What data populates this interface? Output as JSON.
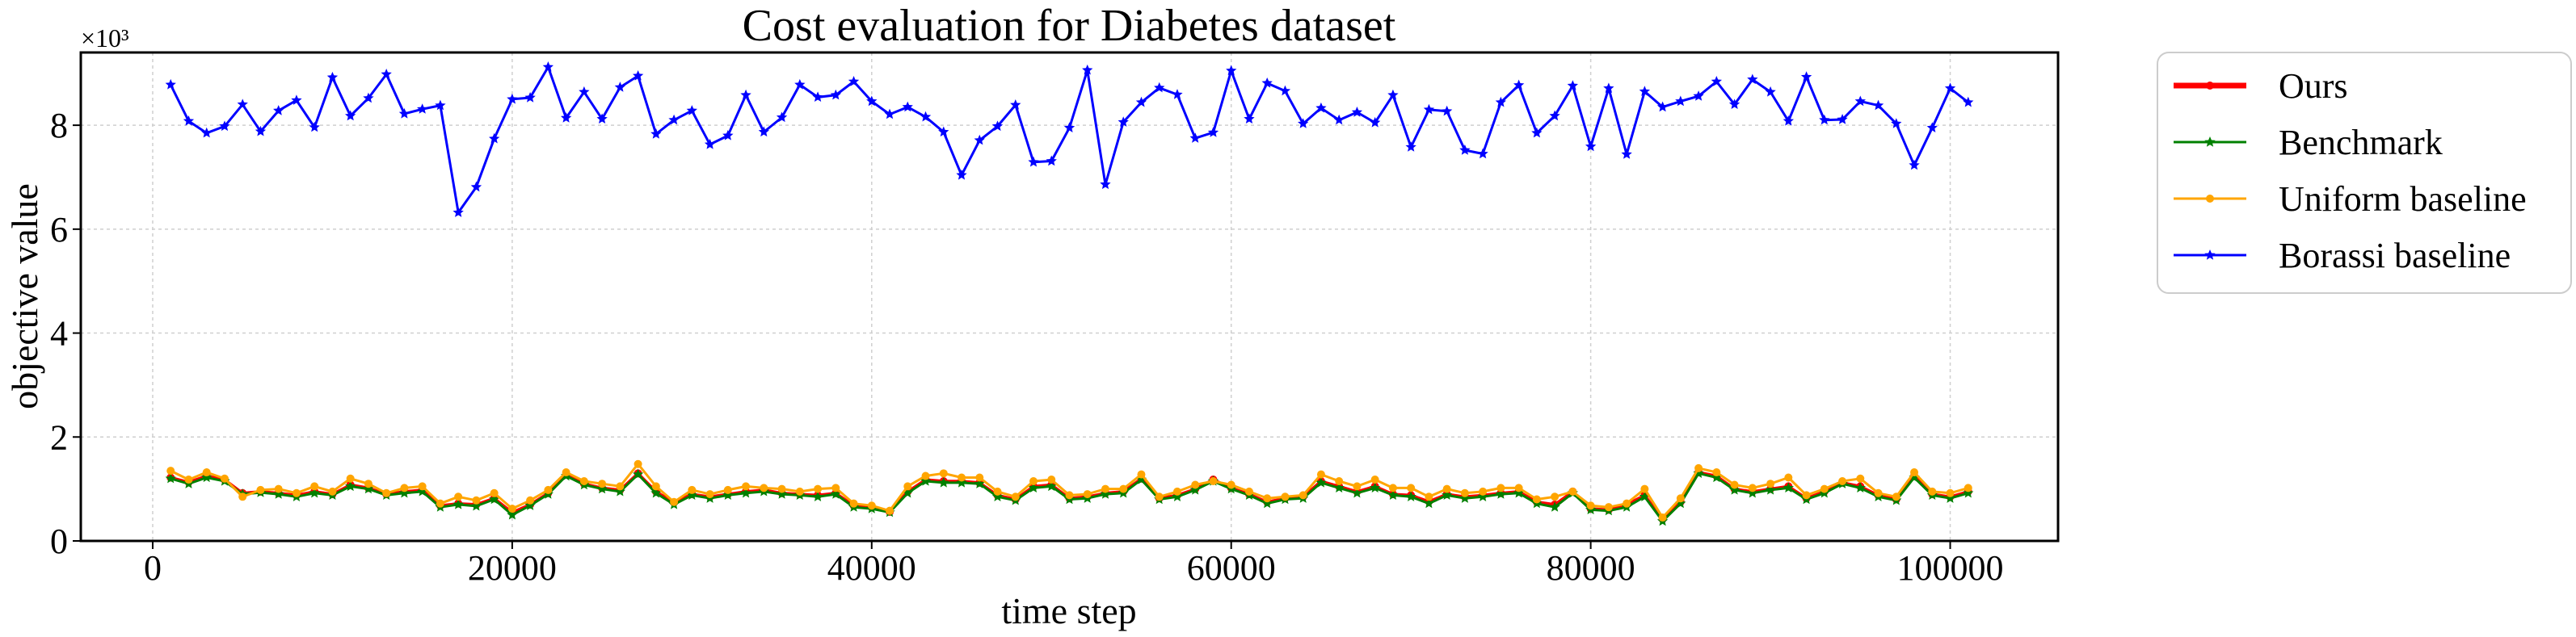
{
  "chart_data": {
    "type": "line",
    "title": "Cost evaluation for Diabetes dataset",
    "xlabel": "time step",
    "ylabel": "objective value",
    "y_multiplier_label": "×10³",
    "xlim": [
      -4000,
      106000
    ],
    "ylim": [
      0,
      9.4
    ],
    "xticks": [
      0,
      20000,
      40000,
      60000,
      80000,
      100000
    ],
    "yticks": [
      0,
      2,
      4,
      6,
      8
    ],
    "grid": true,
    "legend_position": "outside-right-top",
    "x": [
      1000,
      2000,
      3000,
      4000,
      5000,
      6000,
      7000,
      8000,
      9000,
      10000,
      11000,
      12000,
      13000,
      14000,
      15000,
      16000,
      17000,
      18000,
      19000,
      20000,
      21000,
      22000,
      23000,
      24000,
      25000,
      26000,
      27000,
      28000,
      29000,
      30000,
      31000,
      32000,
      33000,
      34000,
      35000,
      36000,
      37000,
      38000,
      39000,
      40000,
      41000,
      42000,
      43000,
      44000,
      45000,
      46000,
      47000,
      48000,
      49000,
      50000,
      51000,
      52000,
      53000,
      54000,
      55000,
      56000,
      57000,
      58000,
      59000,
      60000,
      61000,
      62000,
      63000,
      64000,
      65000,
      66000,
      67000,
      68000,
      69000,
      70000,
      71000,
      72000,
      73000,
      74000,
      75000,
      76000,
      77000,
      78000,
      79000,
      80000,
      81000,
      82000,
      83000,
      84000,
      85000,
      86000,
      87000,
      88000,
      89000,
      90000,
      91000,
      92000,
      93000,
      94000,
      95000,
      96000,
      97000,
      98000,
      99000,
      100000,
      101000
    ],
    "series": [
      {
        "name": "Ours",
        "color": "#ff0000",
        "marker": "circle",
        "values": [
          1.22,
          1.13,
          1.25,
          1.18,
          0.92,
          0.95,
          0.92,
          0.88,
          0.95,
          0.9,
          1.08,
          1.02,
          0.9,
          0.95,
          0.98,
          0.68,
          0.72,
          0.7,
          0.82,
          0.55,
          0.7,
          0.92,
          1.28,
          1.1,
          1.02,
          0.98,
          1.3,
          0.95,
          0.74,
          0.9,
          0.85,
          0.9,
          0.95,
          0.98,
          0.92,
          0.9,
          0.88,
          0.92,
          0.68,
          0.65,
          0.56,
          0.95,
          1.18,
          1.15,
          1.15,
          1.12,
          0.88,
          0.8,
          1.05,
          1.08,
          0.82,
          0.85,
          0.92,
          0.95,
          1.2,
          0.82,
          0.88,
          1.0,
          1.18,
          1.02,
          0.9,
          0.75,
          0.82,
          0.85,
          1.15,
          1.05,
          0.95,
          1.05,
          0.9,
          0.88,
          0.76,
          0.9,
          0.85,
          0.88,
          0.92,
          0.95,
          0.75,
          0.7,
          0.95,
          0.62,
          0.6,
          0.7,
          0.88,
          0.42,
          0.75,
          1.32,
          1.25,
          1.0,
          0.95,
          1.0,
          1.05,
          0.82,
          0.95,
          1.12,
          1.05,
          0.88,
          0.8,
          1.25,
          0.9,
          0.85,
          0.95
        ]
      },
      {
        "name": "Benchmark",
        "color": "#008000",
        "marker": "star",
        "values": [
          1.2,
          1.1,
          1.22,
          1.15,
          0.9,
          0.93,
          0.9,
          0.85,
          0.92,
          0.88,
          1.05,
          1.0,
          0.88,
          0.92,
          0.95,
          0.65,
          0.7,
          0.67,
          0.8,
          0.5,
          0.68,
          0.9,
          1.25,
          1.08,
          1.0,
          0.95,
          1.28,
          0.92,
          0.7,
          0.88,
          0.82,
          0.88,
          0.92,
          0.95,
          0.9,
          0.88,
          0.85,
          0.9,
          0.65,
          0.62,
          0.55,
          0.92,
          1.15,
          1.12,
          1.12,
          1.1,
          0.85,
          0.78,
          1.02,
          1.05,
          0.8,
          0.82,
          0.9,
          0.92,
          1.18,
          0.8,
          0.85,
          0.98,
          1.15,
          1.0,
          0.88,
          0.72,
          0.8,
          0.82,
          1.12,
          1.02,
          0.92,
          1.02,
          0.88,
          0.85,
          0.72,
          0.88,
          0.82,
          0.85,
          0.9,
          0.92,
          0.72,
          0.65,
          0.92,
          0.6,
          0.58,
          0.65,
          0.85,
          0.38,
          0.72,
          1.3,
          1.22,
          0.98,
          0.92,
          0.98,
          1.02,
          0.8,
          0.92,
          1.1,
          1.02,
          0.85,
          0.78,
          1.22,
          0.88,
          0.82,
          0.92
        ]
      },
      {
        "name": "Uniform baseline",
        "color": "#ffa500",
        "marker": "circle",
        "values": [
          1.35,
          1.18,
          1.32,
          1.2,
          0.85,
          0.98,
          1.0,
          0.92,
          1.05,
          0.95,
          1.2,
          1.1,
          0.92,
          1.02,
          1.05,
          0.72,
          0.85,
          0.78,
          0.92,
          0.62,
          0.78,
          0.98,
          1.32,
          1.15,
          1.1,
          1.05,
          1.48,
          1.05,
          0.75,
          0.98,
          0.9,
          0.98,
          1.05,
          1.02,
          1.0,
          0.95,
          1.0,
          1.02,
          0.72,
          0.68,
          0.58,
          1.05,
          1.25,
          1.3,
          1.22,
          1.22,
          0.95,
          0.85,
          1.15,
          1.18,
          0.88,
          0.9,
          1.0,
          1.0,
          1.28,
          0.85,
          0.95,
          1.08,
          1.15,
          1.08,
          0.95,
          0.82,
          0.85,
          0.88,
          1.28,
          1.15,
          1.05,
          1.18,
          1.02,
          1.02,
          0.85,
          1.0,
          0.92,
          0.95,
          1.02,
          1.02,
          0.8,
          0.85,
          0.95,
          0.68,
          0.65,
          0.72,
          1.0,
          0.45,
          0.82,
          1.4,
          1.32,
          1.08,
          1.02,
          1.1,
          1.22,
          0.88,
          1.0,
          1.15,
          1.2,
          0.92,
          0.85,
          1.32,
          0.95,
          0.92,
          1.02
        ]
      },
      {
        "name": "Borassi baseline",
        "color": "#0000ff",
        "marker": "star",
        "values": [
          8.78,
          8.08,
          7.85,
          7.98,
          8.4,
          7.88,
          8.28,
          8.48,
          7.96,
          8.92,
          8.18,
          8.52,
          8.98,
          8.22,
          8.31,
          8.38,
          6.32,
          6.81,
          7.74,
          8.5,
          8.53,
          9.12,
          8.14,
          8.64,
          8.12,
          8.73,
          8.95,
          7.83,
          8.1,
          8.28,
          7.63,
          7.8,
          8.58,
          7.87,
          8.15,
          8.78,
          8.54,
          8.58,
          8.84,
          8.46,
          8.21,
          8.35,
          8.16,
          7.87,
          7.04,
          7.71,
          7.98,
          8.39,
          7.29,
          7.31,
          7.95,
          9.06,
          6.86,
          8.06,
          8.44,
          8.72,
          8.59,
          7.75,
          7.86,
          9.05,
          8.12,
          8.81,
          8.66,
          8.03,
          8.33,
          8.1,
          8.25,
          8.05,
          8.58,
          7.58,
          8.3,
          8.27,
          7.52,
          7.45,
          8.44,
          8.77,
          7.85,
          8.18,
          8.76,
          7.59,
          8.71,
          7.44,
          8.65,
          8.35,
          8.46,
          8.56,
          8.84,
          8.4,
          8.88,
          8.64,
          8.08,
          8.93,
          8.1,
          8.11,
          8.46,
          8.38,
          8.03,
          7.23,
          7.95,
          8.71,
          8.44
        ]
      }
    ]
  }
}
